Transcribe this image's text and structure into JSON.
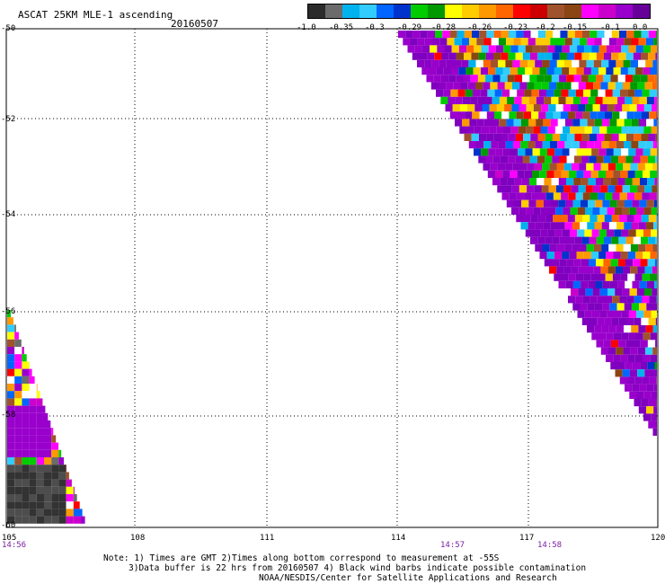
{
  "title": "ASCAT 25KM MLE-1 ascending",
  "date": "20160507",
  "colorbar": {
    "colors": [
      "#2b2b2b",
      "#6b6b6b",
      "#00b2ee",
      "#33ccff",
      "#0066ff",
      "#0033cc",
      "#00cc00",
      "#009900",
      "#ffff00",
      "#ffcc00",
      "#ff9900",
      "#ff6600",
      "#ff0000",
      "#cc0000",
      "#a0522d",
      "#8b4513",
      "#ff00ff",
      "#cc00cc",
      "#9900cc",
      "#660099"
    ],
    "labels": [
      "-1.0",
      "-0.35",
      "-0.3",
      "-0.29",
      "-0.28",
      "-0.26",
      "-0.23",
      "-0.2",
      "-0.15",
      "-0.1",
      "0.0"
    ]
  },
  "y_axis": {
    "labels": [
      "-50",
      "-52",
      "-54",
      "-56",
      "-58",
      "-60"
    ]
  },
  "x_axis": {
    "labels": [
      "105",
      "108",
      "111",
      "114",
      "117",
      "120"
    ]
  },
  "times": [
    "14:56",
    "14:57",
    "14:58"
  ],
  "notes": [
    "Note: 1) Times are GMT 2)Times along bottom correspond to measurement at -55S",
    "3)Data buffer is 22 hrs from 20160507 4) Black wind barbs indicate possible contamination",
    "NOAA/NESDIS/Center for Satellite Applications and Research"
  ]
}
